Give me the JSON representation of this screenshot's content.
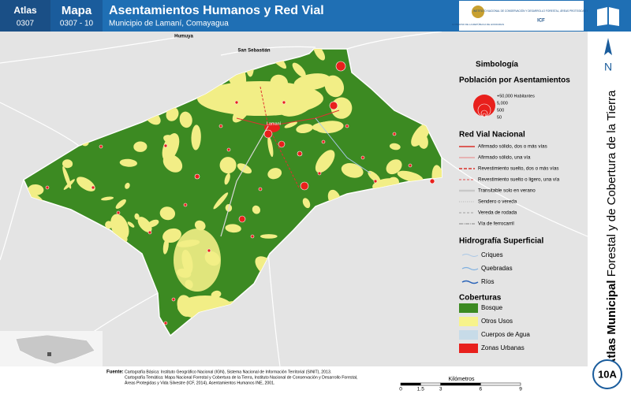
{
  "header": {
    "atlas_label": "Atlas",
    "atlas_code": "0307",
    "map_label": "Mapa",
    "map_code": "0307 - 10",
    "title": "Asentamientos Humanos y Red Vial",
    "subtitle": "Municipio de Lamaní, Comayagua",
    "logo_left": "GOBIERNO DE LA REPÚBLICA DE HONDURAS",
    "logo_right": "INSTITUTO NACIONAL DE CONSERVACIÓN Y DESARROLLO FORESTAL, ÁREAS PROTEGIDAS Y VIDA SILVESTRE",
    "logo_right_short": "ICF"
  },
  "map": {
    "places": [
      "Humuya",
      "San Sebastián",
      "Lamaní"
    ]
  },
  "legend": {
    "title": "Simbología",
    "population": {
      "title": "Población por Asentamientos",
      "items": [
        "+50,000 Habitantes",
        "5,000",
        "500",
        "50"
      ]
    },
    "roads": {
      "title": "Red Vial Nacional",
      "items": [
        "Afirmado sólido, dos o más vías",
        "Afirmado sólido, una vía",
        "Revestimiento suelto, dos o más vías",
        "Revestimiento suelto o ligero, una vía",
        "Transitable solo en verano",
        "Sendero o vereda",
        "Vereda de rodada",
        "Vía de ferrocarril"
      ]
    },
    "hydro": {
      "title": "Hidrografía Superficial",
      "items": [
        "Criques",
        "Quebradas",
        "Ríos"
      ]
    },
    "cover": {
      "title": "Coberturas",
      "items": [
        "Bosque",
        "Otros Usos",
        "Cuerpos de Agua",
        "Zonas Urbanas"
      ]
    }
  },
  "side": {
    "north": "N",
    "title_bold": "Atlas Municipal",
    "title_rest": " Forestal y de Cobertura de la Tierra",
    "page": "10A"
  },
  "scale": {
    "unit": "Kilómetros",
    "ticks": [
      0,
      1.5,
      3,
      6,
      9
    ]
  },
  "footer": {
    "source_label": "Fuente:",
    "lines": [
      "Cartografía Básica: Instituto Geográfico Nacional (IGN), Sistema Nacional de Información Territorial (SINIT), 2013.",
      "Cartografía Temática: Mapa Nacional Forestal y Cobertura de la Tierra, Instituto Nacional de Conservación y Desarrollo Forestal,",
      "Áreas Protegidas y Vida Silvestre (ICF, 2014), Asentamientos Humanos INE, 2001."
    ]
  }
}
